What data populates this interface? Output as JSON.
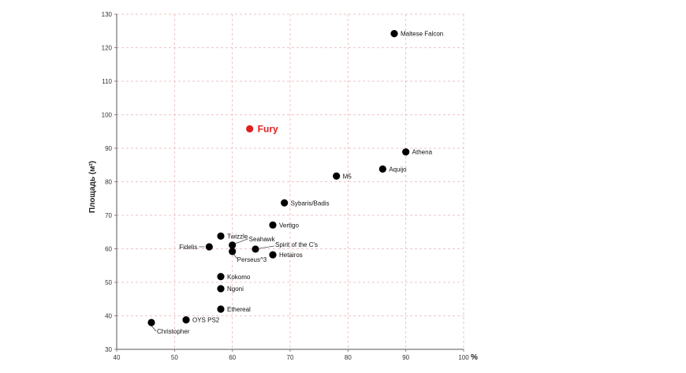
{
  "chart_data": {
    "type": "scatter",
    "title": "",
    "xlabel": "",
    "x_unit": "%",
    "ylabel": "Площадь (м²)",
    "xlim": [
      40,
      100
    ],
    "ylim": [
      30,
      130
    ],
    "x_ticks": [
      "40",
      "50",
      "60",
      "70",
      "80",
      "90",
      "100"
    ],
    "y_ticks": [
      "30",
      "40",
      "50",
      "60",
      "70",
      "80",
      "90",
      "100",
      "110",
      "120",
      "130"
    ],
    "grid": true,
    "colors": {
      "point": "#000000",
      "highlight": "#e02020",
      "grid": "#e8b4b4"
    },
    "points": [
      {
        "name": "Maltese Falcon",
        "x": 88,
        "y": 124.2
      },
      {
        "name": "Fury",
        "x": 63,
        "y": 95.8,
        "highlight": true
      },
      {
        "name": "Athena",
        "x": 90,
        "y": 88.9
      },
      {
        "name": "Aquijo",
        "x": 86,
        "y": 83.8
      },
      {
        "name": "M5",
        "x": 78,
        "y": 81.7
      },
      {
        "name": "Sybaris/Badis",
        "x": 69,
        "y": 73.7
      },
      {
        "name": "Vertigo",
        "x": 67,
        "y": 67.1
      },
      {
        "name": "Twizzle",
        "x": 58,
        "y": 63.8
      },
      {
        "name": "Fidelis",
        "x": 56,
        "y": 60.6
      },
      {
        "name": "Seahawk",
        "x": 60,
        "y": 61.1
      },
      {
        "name": "Spirit of the C's",
        "x": 64,
        "y": 59.9
      },
      {
        "name": "Perseus^3",
        "x": 60,
        "y": 59.2
      },
      {
        "name": "Hetairos",
        "x": 67,
        "y": 58.2
      },
      {
        "name": "Kokomo",
        "x": 58,
        "y": 51.7
      },
      {
        "name": "Ngoni",
        "x": 58,
        "y": 48.1
      },
      {
        "name": "Ethereal",
        "x": 58,
        "y": 42.0
      },
      {
        "name": "OYS PS2",
        "x": 52,
        "y": 38.8
      },
      {
        "name": "Christopher",
        "x": 46,
        "y": 38.0
      }
    ]
  }
}
